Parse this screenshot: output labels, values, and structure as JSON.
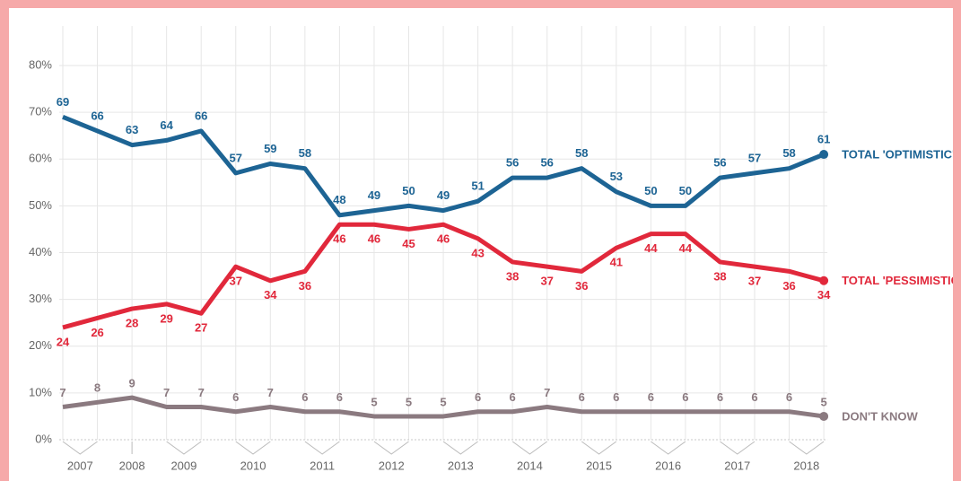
{
  "chart_data": {
    "type": "line",
    "categories": [
      "2007",
      null,
      "2008",
      "2009",
      null,
      "2010",
      null,
      "2011",
      null,
      "2012",
      null,
      "2013",
      null,
      "2014",
      null,
      "2015",
      null,
      "2016",
      null,
      "2017",
      null,
      "2018",
      null
    ],
    "series": [
      {
        "name": "TOTAL 'OPTIMISTIC'",
        "color": "#1d6494",
        "values": [
          69,
          66,
          63,
          64,
          66,
          57,
          59,
          58,
          48,
          49,
          50,
          49,
          51,
          56,
          56,
          58,
          53,
          50,
          50,
          56,
          57,
          58,
          61
        ]
      },
      {
        "name": "TOTAL 'PESSIMISTIC'",
        "color": "#e1283b",
        "values": [
          24,
          26,
          28,
          29,
          27,
          37,
          34,
          36,
          46,
          46,
          45,
          46,
          43,
          38,
          37,
          36,
          41,
          44,
          44,
          38,
          37,
          36,
          34
        ]
      },
      {
        "name": "DON'T KNOW",
        "color": "#8b7a80",
        "values": [
          7,
          8,
          9,
          7,
          7,
          6,
          7,
          6,
          6,
          5,
          5,
          5,
          6,
          6,
          7,
          6,
          6,
          6,
          6,
          6,
          6,
          6,
          5
        ]
      }
    ],
    "ylim": [
      0,
      80
    ],
    "yticks": [
      {
        "value": 0,
        "label": "0%"
      },
      {
        "value": 10,
        "label": "10%"
      },
      {
        "value": 20,
        "label": "20%"
      },
      {
        "value": 30,
        "label": "30%"
      },
      {
        "value": 40,
        "label": "40%"
      },
      {
        "value": 50,
        "label": "50%"
      },
      {
        "value": 60,
        "label": "60%"
      },
      {
        "value": 70,
        "label": "70%"
      },
      {
        "value": 80,
        "label": "80%"
      }
    ],
    "grid": true
  }
}
